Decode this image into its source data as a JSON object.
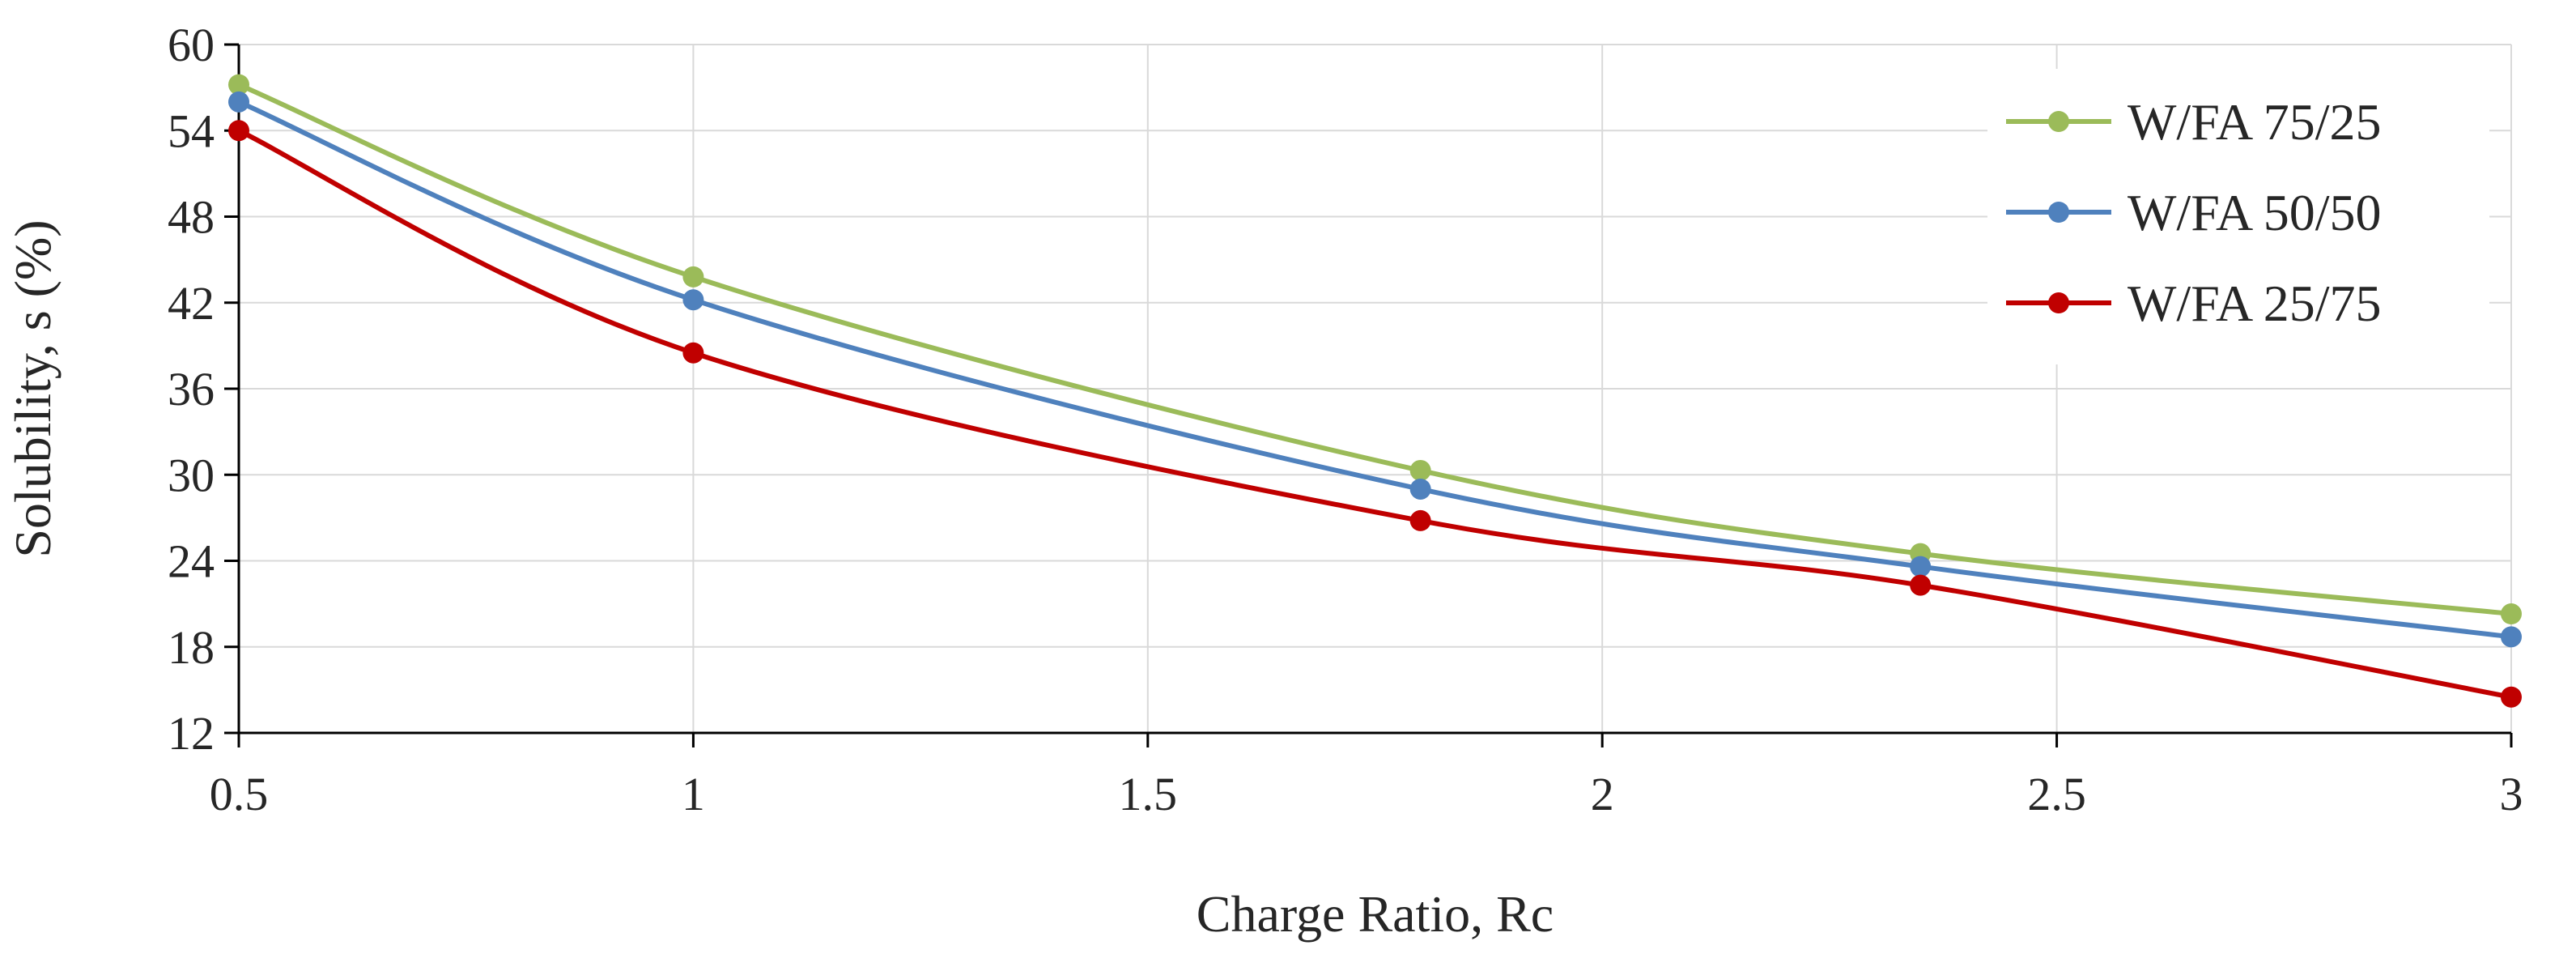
{
  "chart_data": {
    "type": "line",
    "xlabel": "Charge Ratio, Rc",
    "ylabel": "Solubility, s (%)",
    "xlim": [
      0.5,
      3
    ],
    "ylim": [
      12,
      60
    ],
    "x_ticks": [
      "0.5",
      "1",
      "1.5",
      "2",
      "2.5",
      "3"
    ],
    "y_ticks": [
      "12",
      "18",
      "24",
      "30",
      "36",
      "42",
      "48",
      "54",
      "60"
    ],
    "grid": true,
    "legend_position": "top-right",
    "smoothed": true,
    "series": [
      {
        "name": "W/FA 75/25",
        "color": "#9bbb59",
        "points": [
          [
            0.5,
            57.2
          ],
          [
            1,
            43.8
          ],
          [
            1.8,
            30.3
          ],
          [
            2.35,
            24.5
          ],
          [
            3,
            20.3
          ]
        ]
      },
      {
        "name": "W/FA 50/50",
        "color": "#4f81bd",
        "points": [
          [
            0.5,
            56.0
          ],
          [
            1,
            42.2
          ],
          [
            1.8,
            29.0
          ],
          [
            2.35,
            23.6
          ],
          [
            3,
            18.7
          ]
        ]
      },
      {
        "name": "W/FA 25/75",
        "color": "#c00000",
        "points": [
          [
            0.5,
            54.0
          ],
          [
            1,
            38.5
          ],
          [
            1.8,
            26.8
          ],
          [
            2.35,
            22.3
          ],
          [
            3,
            14.5
          ]
        ]
      }
    ]
  }
}
